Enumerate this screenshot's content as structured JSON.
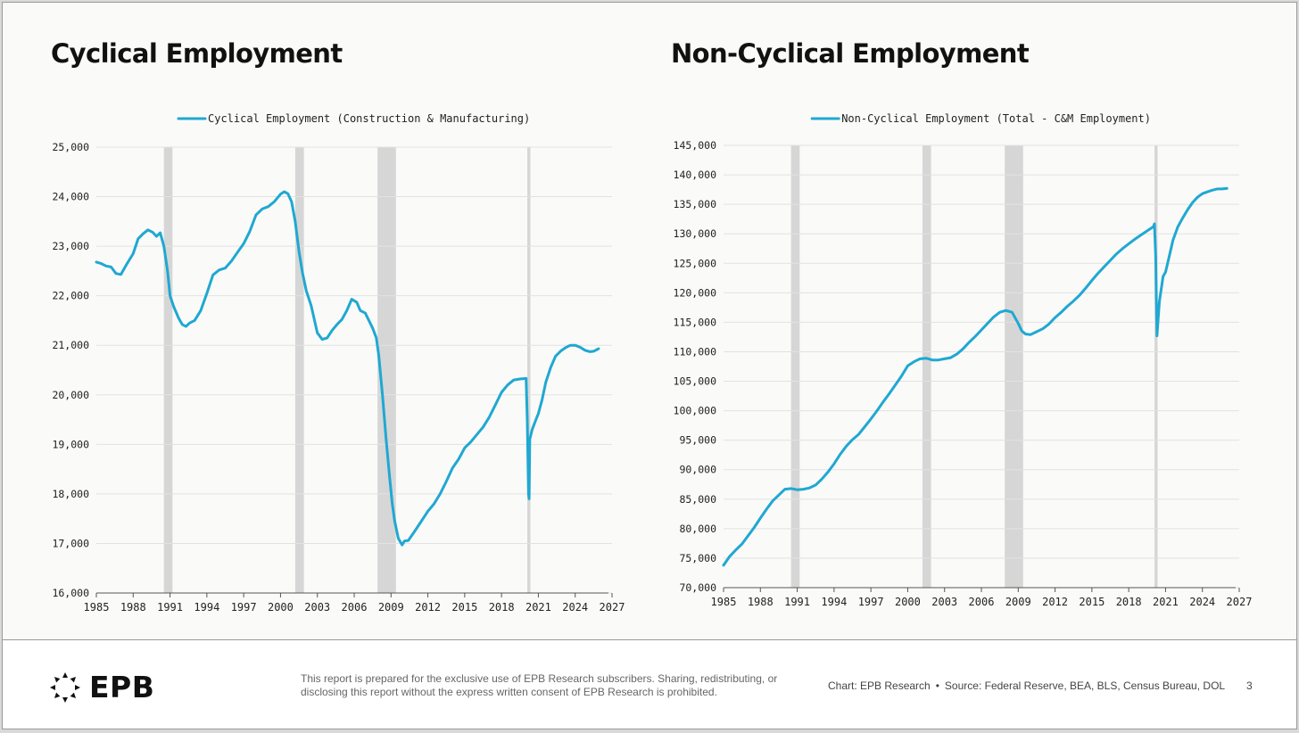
{
  "footer": {
    "logo_text": "EPB",
    "disclaimer": "This report is prepared for the exclusive use of EPB Research subscribers. Sharing, redistributing, or disclosing this report without the express written consent of EPB Research is prohibited.",
    "chart_credit": "Chart: EPB Research",
    "source": "Source: Federal Reserve, BEA, BLS, Census Bureau, DOL",
    "page_number": "3"
  },
  "colors": {
    "line": "#1fa8d2",
    "recession": "#d6d6d6",
    "grid": "#e2e2e2",
    "axis": "#555555",
    "text": "#222222"
  },
  "chart_data": [
    {
      "id": "cyclical",
      "type": "line",
      "title": "Cyclical Employment",
      "legend": "Cyclical Employment (Construction & Manufacturing)",
      "xlabel": "",
      "ylabel": "",
      "xlim": [
        1985,
        2027
      ],
      "ylim": [
        16000,
        25000
      ],
      "xticks": [
        1985,
        1988,
        1991,
        1994,
        1997,
        2000,
        2003,
        2006,
        2009,
        2012,
        2015,
        2018,
        2021,
        2024,
        2027
      ],
      "yticks": [
        16000,
        17000,
        18000,
        19000,
        20000,
        21000,
        22000,
        23000,
        24000,
        25000
      ],
      "ytick_labels": [
        "16,000",
        "17,000",
        "18,000",
        "19,000",
        "20,000",
        "21,000",
        "22,000",
        "23,000",
        "24,000",
        "25,000"
      ],
      "recessions": [
        [
          1990.5,
          1991.2
        ],
        [
          2001.2,
          2001.9
        ],
        [
          2007.9,
          2009.4
        ],
        [
          2020.1,
          2020.35
        ]
      ],
      "series": [
        {
          "name": "Cyclical Employment (Construction & Manufacturing)",
          "x": [
            1985.0,
            1985.4,
            1985.8,
            1986.2,
            1986.6,
            1987.0,
            1987.5,
            1988.0,
            1988.4,
            1988.8,
            1989.2,
            1989.6,
            1989.9,
            1990.2,
            1990.5,
            1990.8,
            1991.0,
            1991.3,
            1991.7,
            1992.0,
            1992.3,
            1992.6,
            1993.0,
            1993.5,
            1994.0,
            1994.5,
            1995.0,
            1995.5,
            1996.0,
            1996.5,
            1997.0,
            1997.5,
            1998.0,
            1998.5,
            1999.0,
            1999.5,
            2000.0,
            2000.3,
            2000.6,
            2000.9,
            2001.2,
            2001.5,
            2001.8,
            2002.1,
            2002.5,
            2003.0,
            2003.4,
            2003.8,
            2004.2,
            2004.6,
            2005.0,
            2005.4,
            2005.8,
            2006.2,
            2006.5,
            2006.9,
            2007.2,
            2007.5,
            2007.8,
            2008.0,
            2008.3,
            2008.6,
            2008.9,
            2009.1,
            2009.3,
            2009.6,
            2009.9,
            2010.1,
            2010.4,
            2010.8,
            2011.2,
            2011.6,
            2012.0,
            2012.5,
            2013.0,
            2013.5,
            2014.0,
            2014.5,
            2015.0,
            2015.5,
            2016.0,
            2016.5,
            2017.0,
            2017.5,
            2018.0,
            2018.5,
            2019.0,
            2019.5,
            2020.0,
            2020.1,
            2020.2,
            2020.25,
            2020.3,
            2020.5,
            2020.8,
            2021.0,
            2021.3,
            2021.6,
            2022.0,
            2022.4,
            2022.8,
            2023.2,
            2023.6,
            2024.0,
            2024.4,
            2024.8,
            2025.2,
            2025.5,
            2025.9
          ],
          "y": [
            22680,
            22650,
            22600,
            22580,
            22450,
            22430,
            22650,
            22850,
            23150,
            23250,
            23330,
            23280,
            23200,
            23270,
            23000,
            22500,
            22000,
            21780,
            21550,
            21420,
            21380,
            21450,
            21500,
            21700,
            22050,
            22420,
            22520,
            22560,
            22700,
            22880,
            23050,
            23300,
            23630,
            23750,
            23800,
            23900,
            24050,
            24100,
            24060,
            23900,
            23500,
            22900,
            22450,
            22100,
            21800,
            21250,
            21120,
            21150,
            21300,
            21420,
            21520,
            21700,
            21930,
            21870,
            21700,
            21650,
            21500,
            21350,
            21150,
            20800,
            20000,
            19100,
            18300,
            17800,
            17450,
            17100,
            16970,
            17050,
            17060,
            17200,
            17350,
            17500,
            17650,
            17800,
            18000,
            18250,
            18520,
            18700,
            18930,
            19050,
            19200,
            19350,
            19550,
            19800,
            20050,
            20200,
            20300,
            20320,
            20330,
            19500,
            18000,
            17900,
            19100,
            19300,
            19500,
            19620,
            19900,
            20250,
            20550,
            20780,
            20880,
            20950,
            21000,
            21000,
            20960,
            20900,
            20870,
            20880,
            20930
          ]
        }
      ]
    },
    {
      "id": "non-cyclical",
      "type": "line",
      "title": "Non-Cyclical Employment",
      "legend": "Non-Cyclical Employment (Total - C&M Employment)",
      "xlabel": "",
      "ylabel": "",
      "xlim": [
        1985,
        2027
      ],
      "ylim": [
        70000,
        145000
      ],
      "xticks": [
        1985,
        1988,
        1991,
        1994,
        1997,
        2000,
        2003,
        2006,
        2009,
        2012,
        2015,
        2018,
        2021,
        2024,
        2027
      ],
      "yticks": [
        70000,
        75000,
        80000,
        85000,
        90000,
        95000,
        100000,
        105000,
        110000,
        115000,
        120000,
        125000,
        130000,
        135000,
        140000,
        145000
      ],
      "ytick_labels": [
        "70,000",
        "75,000",
        "80,000",
        "85,000",
        "90,000",
        "95,000",
        "100,000",
        "105,000",
        "110,000",
        "115,000",
        "120,000",
        "125,000",
        "130,000",
        "135,000",
        "140,000",
        "145,000"
      ],
      "recessions": [
        [
          1990.5,
          1991.2
        ],
        [
          2001.2,
          2001.9
        ],
        [
          2007.9,
          2009.4
        ],
        [
          2020.1,
          2020.35
        ]
      ],
      "series": [
        {
          "name": "Non-Cyclical Employment (Total - C&M Employment)",
          "x": [
            1985.0,
            1985.5,
            1986.0,
            1986.5,
            1987.0,
            1987.5,
            1988.0,
            1988.5,
            1989.0,
            1989.5,
            1990.0,
            1990.5,
            1991.0,
            1991.5,
            1992.0,
            1992.5,
            1993.0,
            1993.5,
            1994.0,
            1994.5,
            1995.0,
            1995.5,
            1996.0,
            1996.5,
            1997.0,
            1997.5,
            1998.0,
            1998.5,
            1999.0,
            1999.5,
            2000.0,
            2000.5,
            2001.0,
            2001.5,
            2002.0,
            2002.5,
            2003.0,
            2003.5,
            2004.0,
            2004.5,
            2005.0,
            2005.5,
            2006.0,
            2006.5,
            2007.0,
            2007.5,
            2008.0,
            2008.5,
            2009.0,
            2009.3,
            2009.6,
            2010.0,
            2010.5,
            2011.0,
            2011.5,
            2012.0,
            2012.5,
            2013.0,
            2013.5,
            2014.0,
            2014.5,
            2015.0,
            2015.5,
            2016.0,
            2016.5,
            2017.0,
            2017.5,
            2018.0,
            2018.5,
            2019.0,
            2019.5,
            2020.0,
            2020.1,
            2020.2,
            2020.3,
            2020.5,
            2020.8,
            2021.0,
            2021.3,
            2021.6,
            2022.0,
            2022.4,
            2022.8,
            2023.2,
            2023.6,
            2024.0,
            2024.4,
            2024.8,
            2025.2,
            2025.6,
            2026.0
          ],
          "y": [
            73800,
            75300,
            76400,
            77400,
            78800,
            80200,
            81800,
            83300,
            84700,
            85700,
            86700,
            86800,
            86600,
            86700,
            86900,
            87400,
            88400,
            89600,
            91000,
            92600,
            94000,
            95100,
            96000,
            97300,
            98600,
            100000,
            101500,
            102900,
            104400,
            105900,
            107600,
            108300,
            108800,
            108900,
            108600,
            108600,
            108800,
            109000,
            109600,
            110500,
            111600,
            112600,
            113700,
            114800,
            115900,
            116700,
            117000,
            116700,
            114800,
            113500,
            113000,
            112900,
            113400,
            113900,
            114700,
            115800,
            116700,
            117700,
            118600,
            119600,
            120800,
            122100,
            123300,
            124400,
            125500,
            126600,
            127500,
            128300,
            129100,
            129800,
            130500,
            131200,
            131700,
            126000,
            112700,
            118500,
            122800,
            123500,
            126200,
            128900,
            131200,
            132700,
            134100,
            135300,
            136200,
            136800,
            137100,
            137400,
            137600,
            137600,
            137700
          ]
        }
      ]
    }
  ]
}
